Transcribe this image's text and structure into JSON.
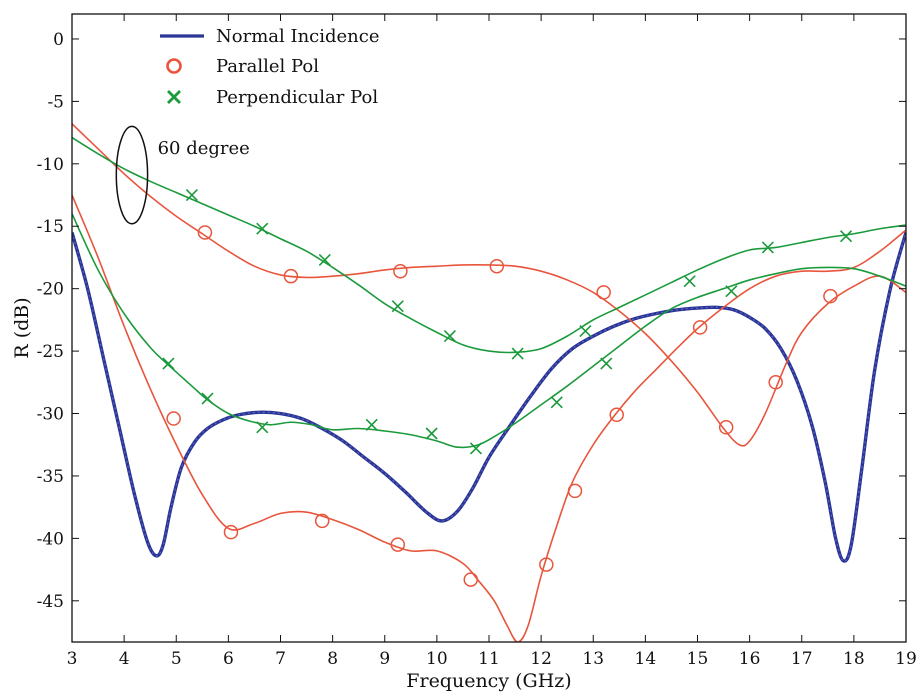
{
  "chart_data": {
    "type": "line",
    "title": "",
    "xlabel": "Frequency (GHz)",
    "ylabel": "R (dB)",
    "xlim": [
      3,
      19
    ],
    "ylim": [
      -48.3,
      2
    ],
    "xticks": [
      3,
      4,
      5,
      6,
      7,
      8,
      9,
      10,
      11,
      12,
      13,
      14,
      15,
      16,
      17,
      18,
      19
    ],
    "yticks": [
      0,
      -5,
      -10,
      -15,
      -20,
      -25,
      -30,
      -35,
      -40,
      -45
    ],
    "grid": false,
    "legend": {
      "placement": "top-left"
    },
    "annotation": {
      "text": "60 degree",
      "ellipse_center": [
        4.15,
        -10.9
      ],
      "ellipse_rx_ghz": 0.3,
      "ellipse_ry_db": 3.9
    },
    "series": [
      {
        "name": "Normal Incidence",
        "color": "#2b3596",
        "style": "thick-dashed-line",
        "marker": "none",
        "x": [
          3.0,
          3.3,
          3.6,
          3.9,
          4.2,
          4.45,
          4.62,
          4.75,
          4.9,
          5.1,
          5.35,
          5.6,
          5.9,
          6.2,
          6.6,
          7.0,
          7.4,
          7.8,
          8.2,
          8.6,
          9.0,
          9.4,
          9.8,
          10.1,
          10.4,
          10.7,
          11.0,
          11.4,
          11.8,
          12.2,
          12.6,
          13.0,
          13.4,
          13.8,
          14.2,
          14.6,
          15.0,
          15.4,
          15.7,
          16.0,
          16.3,
          16.6,
          16.9,
          17.2,
          17.45,
          17.65,
          17.8,
          17.95,
          18.15,
          18.4,
          18.7,
          19.0
        ],
        "y": [
          -15.5,
          -20.0,
          -25.5,
          -31.0,
          -36.5,
          -40.3,
          -41.4,
          -40.5,
          -37.5,
          -34.3,
          -32.3,
          -31.2,
          -30.5,
          -30.1,
          -29.9,
          -30.0,
          -30.4,
          -31.2,
          -32.2,
          -33.5,
          -34.8,
          -36.3,
          -37.9,
          -38.6,
          -37.8,
          -35.9,
          -33.5,
          -31.0,
          -28.6,
          -26.4,
          -24.8,
          -23.8,
          -23.0,
          -22.4,
          -22.0,
          -21.7,
          -21.55,
          -21.5,
          -21.7,
          -22.3,
          -23.2,
          -24.8,
          -27.3,
          -31.0,
          -35.5,
          -40.0,
          -41.8,
          -40.5,
          -34.5,
          -26.5,
          -20.0,
          -15.5
        ]
      },
      {
        "name": "Parallel Pol",
        "color": "#e8553c",
        "style": "line",
        "marker": "circle",
        "sets": [
          {
            "x": [
              3.0,
              3.5,
              4.0,
              4.5,
              5.0,
              5.5,
              6.0,
              6.5,
              7.0,
              7.5,
              8.0,
              8.5,
              9.0,
              9.5,
              10.0,
              10.5,
              11.0,
              11.5,
              12.0,
              12.5,
              13.0,
              13.5,
              14.0,
              14.5,
              15.0,
              15.5,
              15.8,
              16.0,
              16.3,
              16.7,
              17.0,
              17.5,
              18.0,
              18.5,
              19.0
            ],
            "y": [
              -6.8,
              -8.8,
              -10.8,
              -12.6,
              -14.2,
              -15.6,
              -17.0,
              -18.2,
              -18.9,
              -19.1,
              -19.0,
              -18.8,
              -18.5,
              -18.3,
              -18.2,
              -18.1,
              -18.1,
              -18.2,
              -18.6,
              -19.3,
              -20.3,
              -21.8,
              -23.6,
              -25.8,
              -28.3,
              -31.2,
              -32.5,
              -32.2,
              -30.0,
              -26.0,
              -23.5,
              -21.2,
              -19.8,
              -19.0,
              -20.3
            ]
          },
          {
            "x": [
              3.0,
              3.5,
              4.0,
              4.5,
              5.0,
              5.5,
              6.0,
              6.5,
              7.0,
              7.5,
              8.0,
              8.5,
              9.0,
              9.5,
              10.0,
              10.5,
              10.8,
              11.1,
              11.35,
              11.55,
              11.75,
              12.0,
              12.3,
              12.6,
              13.0,
              13.4,
              13.8,
              14.2,
              14.6,
              15.0,
              15.5,
              16.0,
              16.5,
              17.0,
              17.5,
              18.0,
              18.5,
              19.0
            ],
            "y": [
              -12.5,
              -17.5,
              -23.0,
              -28.0,
              -32.5,
              -36.5,
              -39.2,
              -38.8,
              -38.0,
              -37.9,
              -38.5,
              -39.3,
              -40.3,
              -41.0,
              -41.0,
              -42.0,
              -43.4,
              -45.0,
              -47.0,
              -48.3,
              -47.0,
              -43.0,
              -39.0,
              -35.5,
              -32.5,
              -30.2,
              -28.2,
              -26.5,
              -24.8,
              -23.2,
              -21.5,
              -20.0,
              -19.0,
              -18.6,
              -18.6,
              -18.3,
              -17.0,
              -15.3
            ]
          }
        ]
      },
      {
        "name": "Perpendicular Pol",
        "color": "#1b9a3c",
        "style": "line",
        "marker": "x",
        "sets": [
          {
            "x": [
              3.0,
              3.5,
              4.0,
              4.5,
              5.0,
              5.5,
              6.0,
              6.5,
              7.0,
              7.5,
              8.0,
              8.5,
              9.0,
              9.5,
              10.0,
              10.5,
              11.0,
              11.5,
              12.0,
              12.5,
              13.0,
              13.5,
              14.0,
              14.5,
              15.0,
              15.5,
              16.0,
              16.5,
              17.0,
              17.5,
              18.0,
              18.5,
              19.0
            ],
            "y": [
              -7.9,
              -9.2,
              -10.4,
              -11.4,
              -12.3,
              -13.2,
              -14.1,
              -15.0,
              -16.0,
              -17.0,
              -18.3,
              -19.7,
              -21.2,
              -22.4,
              -23.5,
              -24.5,
              -25.0,
              -25.1,
              -24.8,
              -23.8,
              -22.5,
              -21.5,
              -20.5,
              -19.5,
              -18.5,
              -17.6,
              -16.9,
              -16.7,
              -16.3,
              -15.9,
              -15.6,
              -15.2,
              -14.9
            ]
          },
          {
            "x": [
              3.0,
              3.5,
              4.0,
              4.5,
              4.9,
              5.3,
              5.6,
              6.0,
              6.4,
              6.8,
              7.2,
              7.6,
              8.0,
              8.5,
              9.0,
              9.5,
              10.0,
              10.4,
              10.8,
              11.2,
              11.6,
              12.0,
              12.5,
              13.0,
              13.5,
              14.0,
              14.5,
              15.0,
              15.5,
              16.0,
              16.5,
              17.0,
              17.5,
              18.0,
              18.5,
              19.0
            ],
            "y": [
              -14.0,
              -18.5,
              -22.0,
              -24.7,
              -26.3,
              -27.8,
              -28.9,
              -30.0,
              -30.6,
              -30.9,
              -30.7,
              -30.9,
              -31.3,
              -31.2,
              -31.4,
              -31.7,
              -32.2,
              -32.7,
              -32.5,
              -31.6,
              -30.5,
              -29.3,
              -27.8,
              -26.2,
              -24.6,
              -23.0,
              -21.6,
              -20.7,
              -20.0,
              -19.3,
              -18.8,
              -18.4,
              -18.3,
              -18.4,
              -19.0,
              -19.8
            ]
          }
        ]
      }
    ],
    "markers": {
      "Parallel Pol": [
        [
          5.55,
          -15.5
        ],
        [
          7.2,
          -19.0
        ],
        [
          9.3,
          -18.6
        ],
        [
          11.15,
          -18.2
        ],
        [
          13.2,
          -20.3
        ],
        [
          15.55,
          -31.1
        ],
        [
          16.5,
          -27.5
        ],
        [
          17.55,
          -20.6
        ],
        [
          4.95,
          -30.4
        ],
        [
          6.05,
          -39.5
        ],
        [
          7.8,
          -38.6
        ],
        [
          9.25,
          -40.5
        ],
        [
          10.65,
          -43.3
        ],
        [
          12.1,
          -42.1
        ],
        [
          12.65,
          -36.2
        ],
        [
          13.45,
          -30.1
        ],
        [
          15.05,
          -23.1
        ]
      ],
      "Perpendicular Pol": [
        [
          5.3,
          -12.5
        ],
        [
          6.65,
          -15.2
        ],
        [
          7.85,
          -17.7
        ],
        [
          9.25,
          -21.4
        ],
        [
          10.25,
          -23.8
        ],
        [
          11.55,
          -25.2
        ],
        [
          12.85,
          -23.4
        ],
        [
          14.85,
          -19.4
        ],
        [
          16.35,
          -16.7
        ],
        [
          17.85,
          -15.8
        ],
        [
          4.85,
          -26.0
        ],
        [
          5.6,
          -28.8
        ],
        [
          6.65,
          -31.1
        ],
        [
          8.75,
          -30.9
        ],
        [
          9.9,
          -31.6
        ],
        [
          10.75,
          -32.8
        ],
        [
          12.3,
          -29.1
        ],
        [
          13.25,
          -26.0
        ],
        [
          15.65,
          -20.2
        ]
      ]
    }
  }
}
